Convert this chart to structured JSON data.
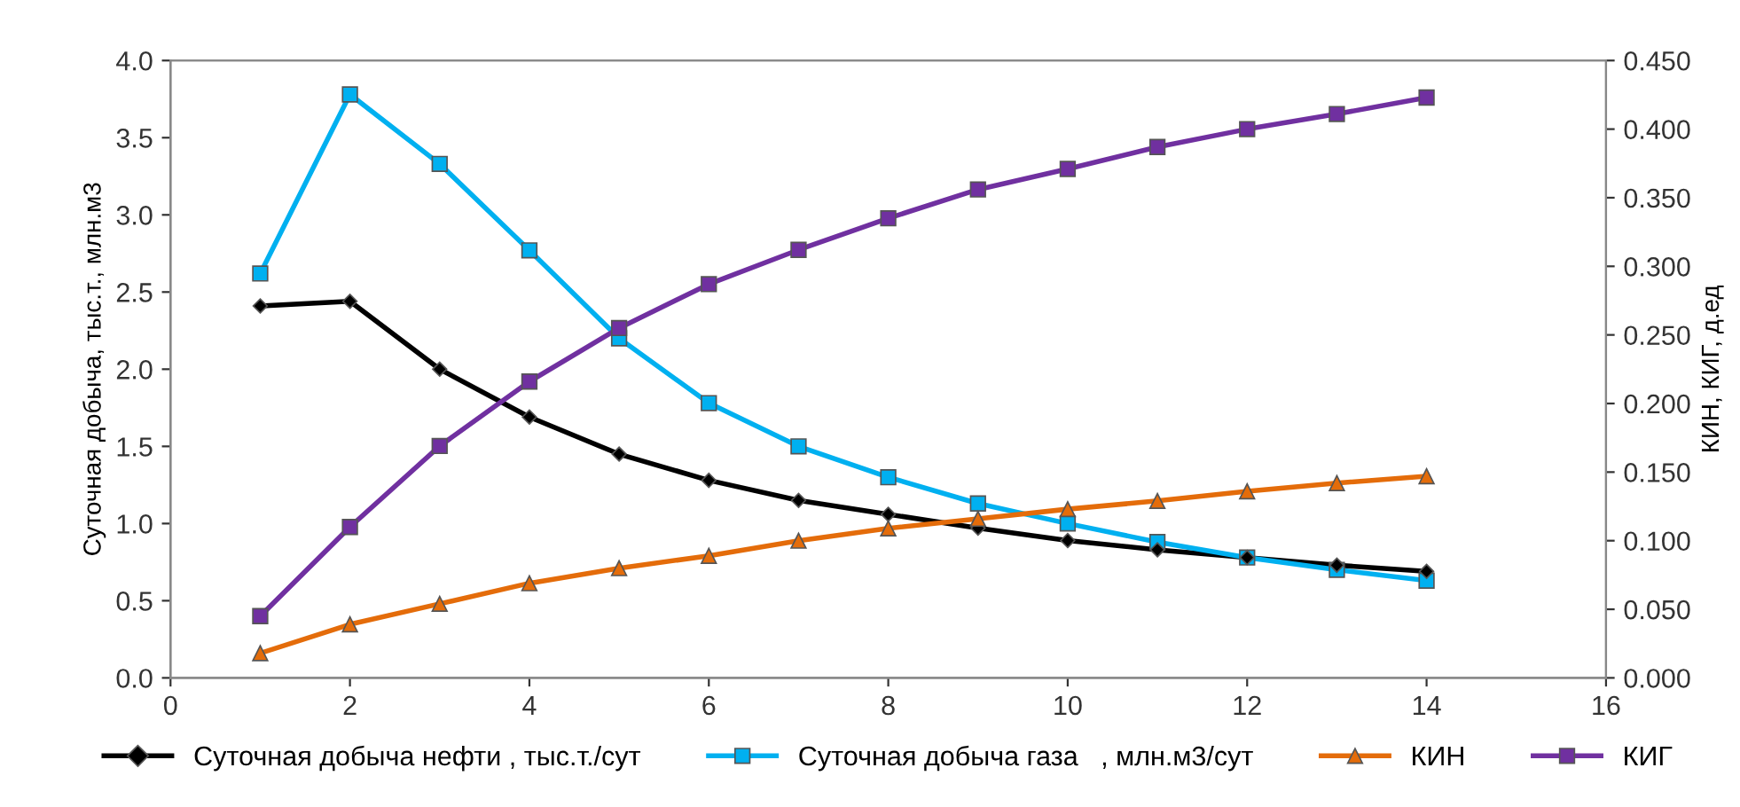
{
  "chart_data": {
    "type": "line",
    "x": [
      1,
      2,
      3,
      4,
      5,
      6,
      7,
      8,
      9,
      10,
      11,
      12,
      13,
      14
    ],
    "ylabel": "Суточная добыча, тыс.т., млн.м3",
    "y2label": "КИН, КИГ, д.ед",
    "xlim": [
      0,
      16
    ],
    "xticks": [
      0,
      2,
      4,
      6,
      8,
      10,
      12,
      14,
      16
    ],
    "ylim": [
      0,
      4.0
    ],
    "yticks": [
      {
        "value": 0,
        "label": "0.0"
      },
      {
        "value": 0.5,
        "label": "0.5"
      },
      {
        "value": 1,
        "label": "1.0"
      },
      {
        "value": 1.5,
        "label": "1.5"
      },
      {
        "value": 2,
        "label": "2.0"
      },
      {
        "value": 2.5,
        "label": "2.5"
      },
      {
        "value": 3,
        "label": "3.0"
      },
      {
        "value": 3.5,
        "label": "3.5"
      },
      {
        "value": 4,
        "label": "4.0"
      }
    ],
    "y2lim": [
      0,
      0.45
    ],
    "y2ticks": [
      {
        "value": 0,
        "label": "0.000"
      },
      {
        "value": 0.05,
        "label": "0.050"
      },
      {
        "value": 0.1,
        "label": "0.100"
      },
      {
        "value": 0.15,
        "label": "0.150"
      },
      {
        "value": 0.2,
        "label": "0.200"
      },
      {
        "value": 0.25,
        "label": "0.250"
      },
      {
        "value": 0.3,
        "label": "0.300"
      },
      {
        "value": 0.35,
        "label": "0.350"
      },
      {
        "value": 0.4,
        "label": "0.400"
      },
      {
        "value": 0.45,
        "label": "0.450"
      }
    ],
    "grid": false,
    "legend": "bottom",
    "line_style": "solid",
    "series": [
      {
        "name": "Суточная добыча нефти , тыс.т./сут",
        "color": "#000000",
        "marker": "diamond",
        "values": [
          2.41,
          2.44,
          2.0,
          1.69,
          1.45,
          1.28,
          1.15,
          1.06,
          0.97,
          0.89,
          0.83,
          0.78,
          0.73,
          0.69
        ]
      },
      {
        "name": "Суточная добыча газа   , млн.м3/сут",
        "color": "#00b0f0",
        "marker": "square",
        "values": [
          2.62,
          3.78,
          3.33,
          2.77,
          2.2,
          1.78,
          1.5,
          1.3,
          1.13,
          1.0,
          0.88,
          0.78,
          0.7,
          0.63
        ]
      },
      {
        "name": "КИН",
        "color": "#e46c0a",
        "marker": "triangle",
        "axis": "y2",
        "values": [
          0.018,
          0.039,
          0.054,
          0.069,
          0.08,
          0.089,
          0.1,
          0.109,
          0.116,
          0.123,
          0.129,
          0.136,
          0.142,
          0.147
        ]
      },
      {
        "name": "КИГ",
        "color": "#7030a0",
        "marker": "square",
        "axis": "y2",
        "values": [
          0.045,
          0.11,
          0.169,
          0.216,
          0.255,
          0.287,
          0.312,
          0.335,
          0.356,
          0.371,
          0.387,
          0.4,
          0.411,
          0.423
        ]
      }
    ]
  }
}
